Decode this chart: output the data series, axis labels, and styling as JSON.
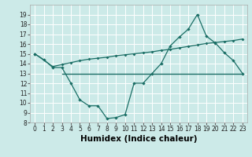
{
  "line1_x": [
    0,
    1,
    2,
    3,
    4,
    5,
    6,
    7,
    8,
    9,
    10,
    11,
    12,
    13,
    14,
    15,
    16,
    17,
    18,
    19,
    20,
    21,
    22,
    23
  ],
  "line1_y": [
    15.0,
    14.4,
    13.6,
    13.6,
    12.0,
    10.3,
    9.7,
    9.7,
    8.4,
    8.5,
    8.8,
    12.0,
    12.0,
    13.0,
    14.0,
    15.8,
    16.7,
    17.5,
    19.0,
    16.8,
    16.1,
    15.1,
    14.3,
    13.0
  ],
  "line2_x": [
    0,
    2,
    3,
    4,
    5,
    6,
    7,
    8,
    9,
    10,
    11,
    12,
    13,
    14,
    15,
    16,
    17,
    18,
    19,
    20,
    21,
    22,
    23
  ],
  "line2_y": [
    15.0,
    13.7,
    13.9,
    14.1,
    14.3,
    14.45,
    14.55,
    14.65,
    14.8,
    14.9,
    15.0,
    15.1,
    15.2,
    15.35,
    15.45,
    15.6,
    15.75,
    15.9,
    16.05,
    16.15,
    16.25,
    16.35,
    16.5
  ],
  "line3_x": [
    3,
    23
  ],
  "line3_y": [
    13.0,
    13.0
  ],
  "color1": "#1a6e65",
  "color2": "#1a6e65",
  "color3": "#1a6e65",
  "bg_color": "#cceae8",
  "grid_color": "#ffffff",
  "xlabel": "Humidex (Indice chaleur)",
  "ylim": [
    8,
    20
  ],
  "xlim": [
    -0.5,
    23.5
  ],
  "yticks": [
    8,
    9,
    10,
    11,
    12,
    13,
    14,
    15,
    16,
    17,
    18,
    19
  ],
  "xticks": [
    0,
    1,
    2,
    3,
    4,
    5,
    6,
    7,
    8,
    9,
    10,
    11,
    12,
    13,
    14,
    15,
    16,
    17,
    18,
    19,
    20,
    21,
    22,
    23
  ],
  "tick_fontsize": 5.5,
  "label_fontsize": 7.5
}
